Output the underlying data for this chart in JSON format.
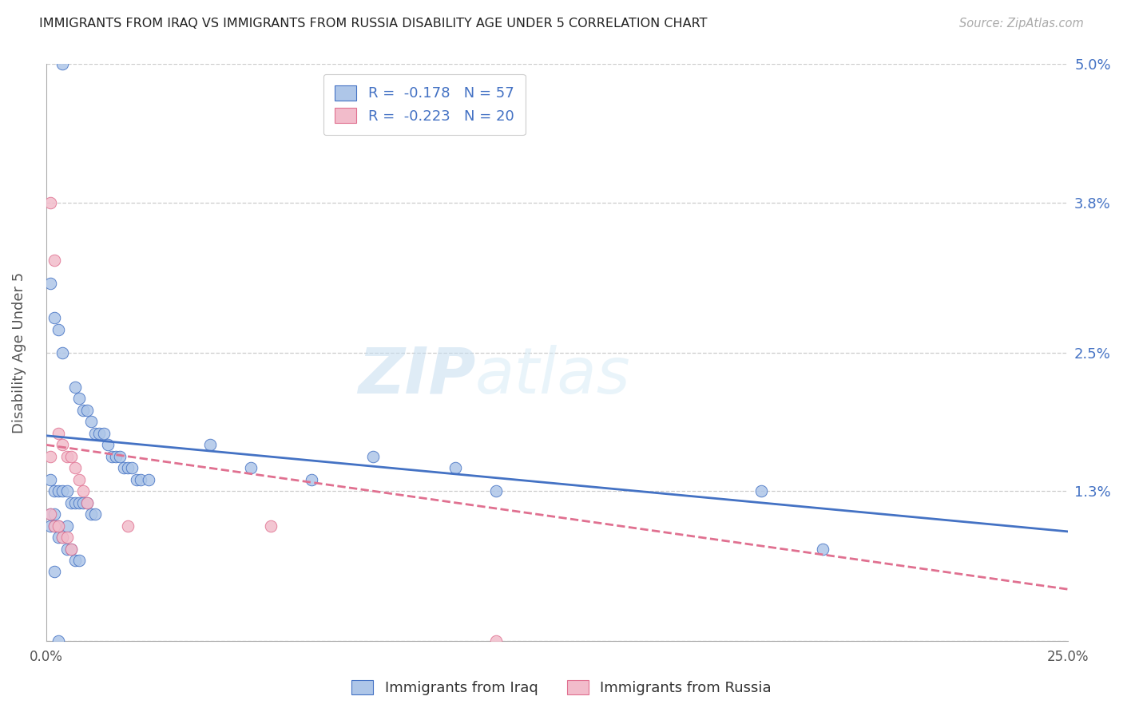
{
  "title": "IMMIGRANTS FROM IRAQ VS IMMIGRANTS FROM RUSSIA DISABILITY AGE UNDER 5 CORRELATION CHART",
  "source": "Source: ZipAtlas.com",
  "ylabel": "Disability Age Under 5",
  "xlim": [
    0.0,
    0.25
  ],
  "ylim": [
    0.0,
    0.05
  ],
  "yticks": [
    0.0,
    0.013,
    0.025,
    0.038,
    0.05
  ],
  "ytick_labels": [
    "",
    "1.3%",
    "2.5%",
    "3.8%",
    "5.0%"
  ],
  "iraq_R": "-0.178",
  "iraq_N": "57",
  "russia_R": "-0.223",
  "russia_N": "20",
  "iraq_color": "#aec6e8",
  "russia_color": "#f2bccb",
  "iraq_line_color": "#4472c4",
  "russia_line_color": "#e07090",
  "legend_label_iraq": "Immigrants from Iraq",
  "legend_label_russia": "Immigrants from Russia",
  "iraq_x": [
    0.004,
    0.001,
    0.002,
    0.003,
    0.004,
    0.007,
    0.008,
    0.009,
    0.01,
    0.011,
    0.012,
    0.013,
    0.014,
    0.015,
    0.016,
    0.017,
    0.018,
    0.019,
    0.02,
    0.021,
    0.022,
    0.023,
    0.025,
    0.001,
    0.002,
    0.003,
    0.004,
    0.005,
    0.006,
    0.007,
    0.008,
    0.009,
    0.01,
    0.011,
    0.012,
    0.001,
    0.002,
    0.003,
    0.005,
    0.04,
    0.05,
    0.065,
    0.08,
    0.1,
    0.11,
    0.175,
    0.001,
    0.002,
    0.003,
    0.004,
    0.005,
    0.006,
    0.007,
    0.008,
    0.002,
    0.003,
    0.19
  ],
  "iraq_y": [
    0.05,
    0.031,
    0.028,
    0.027,
    0.025,
    0.022,
    0.021,
    0.02,
    0.02,
    0.019,
    0.018,
    0.018,
    0.018,
    0.017,
    0.016,
    0.016,
    0.016,
    0.015,
    0.015,
    0.015,
    0.014,
    0.014,
    0.014,
    0.014,
    0.013,
    0.013,
    0.013,
    0.013,
    0.012,
    0.012,
    0.012,
    0.012,
    0.012,
    0.011,
    0.011,
    0.011,
    0.011,
    0.01,
    0.01,
    0.017,
    0.015,
    0.014,
    0.016,
    0.015,
    0.013,
    0.013,
    0.01,
    0.01,
    0.009,
    0.009,
    0.008,
    0.008,
    0.007,
    0.007,
    0.006,
    0.0,
    0.008
  ],
  "russia_x": [
    0.001,
    0.002,
    0.003,
    0.004,
    0.005,
    0.006,
    0.007,
    0.008,
    0.009,
    0.01,
    0.001,
    0.002,
    0.003,
    0.004,
    0.005,
    0.006,
    0.02,
    0.055,
    0.11,
    0.001
  ],
  "russia_y": [
    0.038,
    0.033,
    0.018,
    0.017,
    0.016,
    0.016,
    0.015,
    0.014,
    0.013,
    0.012,
    0.011,
    0.01,
    0.01,
    0.009,
    0.009,
    0.008,
    0.01,
    0.01,
    0.0,
    0.016
  ],
  "iraq_trend_x": [
    0.0,
    0.25
  ],
  "iraq_trend_y": [
    0.0178,
    0.0095
  ],
  "russia_trend_x": [
    0.0,
    0.25
  ],
  "russia_trend_y": [
    0.017,
    0.0045
  ]
}
